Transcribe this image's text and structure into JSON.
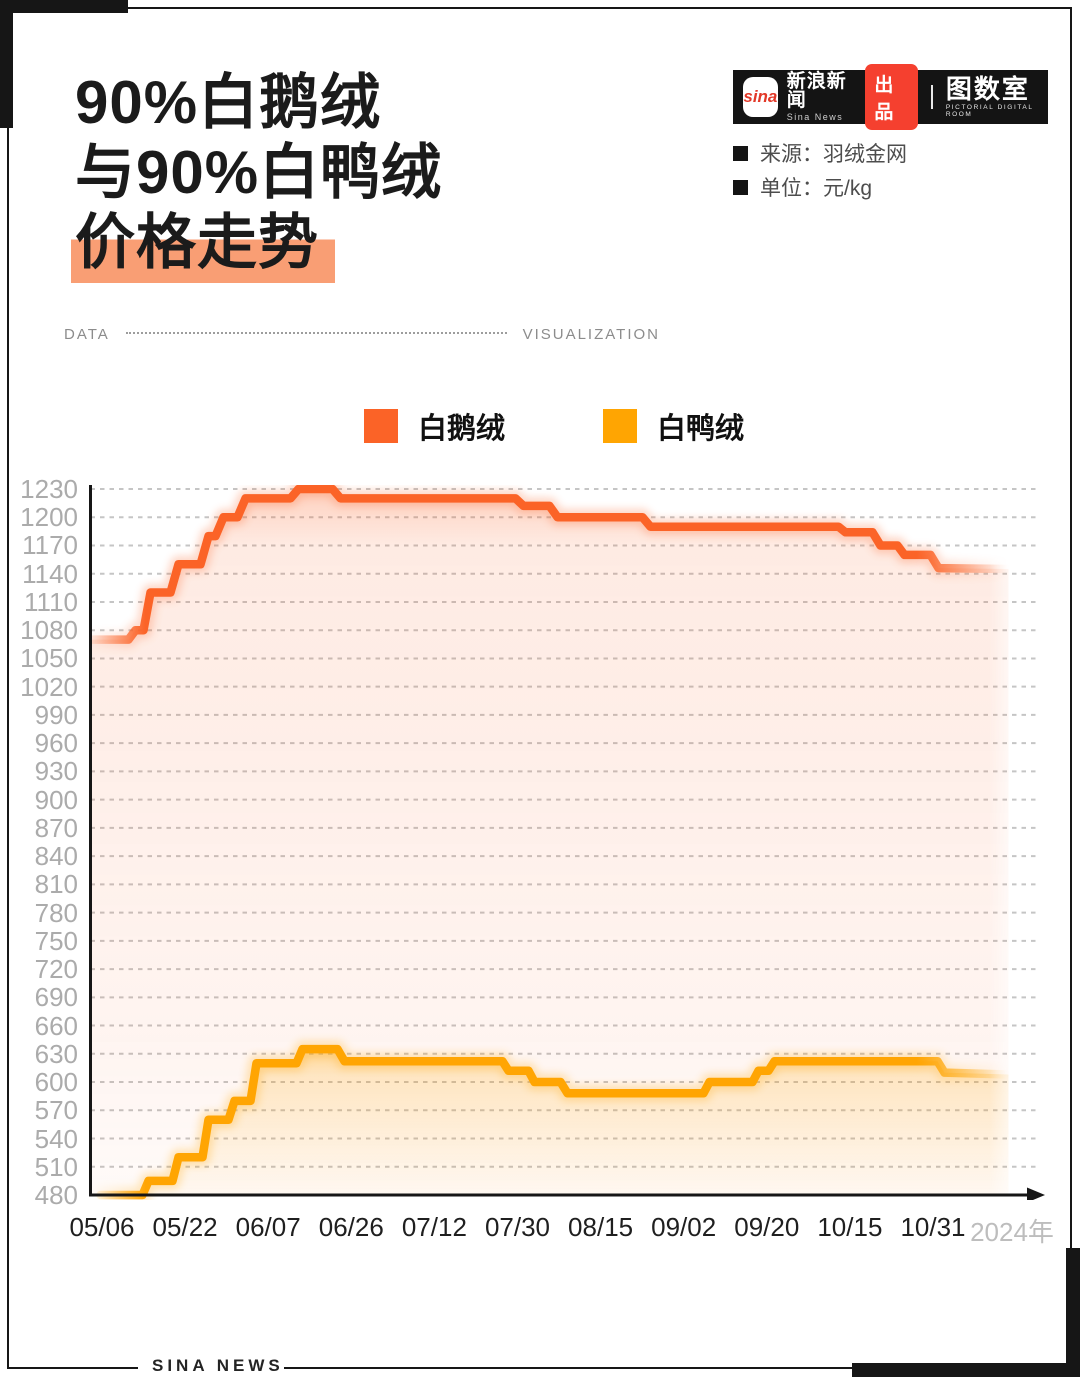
{
  "header": {
    "title_lines": [
      "90%白鹅绒",
      "与90%白鸭绒",
      "价格走势"
    ],
    "highlight_color": "#F99E74",
    "logo_bar": {
      "sina_mark": "sina",
      "brand_cn": "新浪新闻",
      "brand_en": "Sina News",
      "badge": "出品",
      "badge_color": "#F5402F",
      "room_cn": "图数室",
      "room_en": "PICTORIAL DIGITAL ROOM"
    },
    "meta": [
      {
        "label": "来源：羽绒金网"
      },
      {
        "label": "单位：元/kg"
      }
    ]
  },
  "divider": {
    "left": "DATA",
    "right": "VISUALIZATION"
  },
  "legend": [
    {
      "label": "白鹅绒",
      "color": "#FB6327"
    },
    {
      "label": "白鸭绒",
      "color": "#FFA502"
    }
  ],
  "footer": {
    "brand": "SINA NEWS"
  },
  "chart_data": {
    "type": "line",
    "title": "90%白鹅绒与90%白鸭绒价格走势",
    "unit": "元/kg",
    "source": "羽绒金网",
    "grid": "dashed-horizontal",
    "legend_position": "top",
    "ylim": [
      480,
      1230
    ],
    "y_ticks": [
      1230,
      1200,
      1170,
      1140,
      1110,
      1080,
      1050,
      1020,
      990,
      960,
      930,
      900,
      870,
      840,
      810,
      780,
      750,
      720,
      690,
      660,
      630,
      600,
      570,
      540,
      510,
      480
    ],
    "x_tick_labels": [
      "05/06",
      "05/22",
      "06/07",
      "06/26",
      "07/12",
      "07/30",
      "08/15",
      "09/02",
      "09/20",
      "10/15",
      "10/31"
    ],
    "x_axis_suffix": "2024年",
    "x_range": [
      0,
      918
    ],
    "series": [
      {
        "name": "白鹅绒",
        "color": "#FB6327",
        "step": true,
        "points": [
          [
            0,
            1070
          ],
          [
            38,
            1070
          ],
          [
            45,
            1080
          ],
          [
            53,
            1080
          ],
          [
            60,
            1120
          ],
          [
            80,
            1120
          ],
          [
            88,
            1150
          ],
          [
            110,
            1150
          ],
          [
            118,
            1180
          ],
          [
            125,
            1180
          ],
          [
            133,
            1200
          ],
          [
            147,
            1200
          ],
          [
            155,
            1220
          ],
          [
            200,
            1220
          ],
          [
            208,
            1230
          ],
          [
            242,
            1230
          ],
          [
            250,
            1220
          ],
          [
            425,
            1220
          ],
          [
            433,
            1212
          ],
          [
            459,
            1212
          ],
          [
            467,
            1200
          ],
          [
            552,
            1200
          ],
          [
            560,
            1190
          ],
          [
            748,
            1190
          ],
          [
            755,
            1184
          ],
          [
            782,
            1184
          ],
          [
            790,
            1170
          ],
          [
            807,
            1170
          ],
          [
            814,
            1160
          ],
          [
            840,
            1160
          ],
          [
            848,
            1146
          ],
          [
            918,
            1145
          ]
        ]
      },
      {
        "name": "白鸭绒",
        "color": "#FFA502",
        "step": true,
        "points": [
          [
            10,
            480
          ],
          [
            52,
            480
          ],
          [
            58,
            495
          ],
          [
            82,
            495
          ],
          [
            88,
            520
          ],
          [
            112,
            520
          ],
          [
            118,
            560
          ],
          [
            138,
            560
          ],
          [
            144,
            580
          ],
          [
            160,
            580
          ],
          [
            166,
            620
          ],
          [
            206,
            620
          ],
          [
            212,
            635
          ],
          [
            247,
            635
          ],
          [
            254,
            622
          ],
          [
            412,
            622
          ],
          [
            418,
            612
          ],
          [
            438,
            612
          ],
          [
            444,
            600
          ],
          [
            470,
            600
          ],
          [
            477,
            588
          ],
          [
            613,
            588
          ],
          [
            619,
            600
          ],
          [
            662,
            600
          ],
          [
            668,
            612
          ],
          [
            678,
            612
          ],
          [
            684,
            622
          ],
          [
            847,
            622
          ],
          [
            854,
            610
          ],
          [
            918,
            608
          ]
        ]
      }
    ]
  }
}
